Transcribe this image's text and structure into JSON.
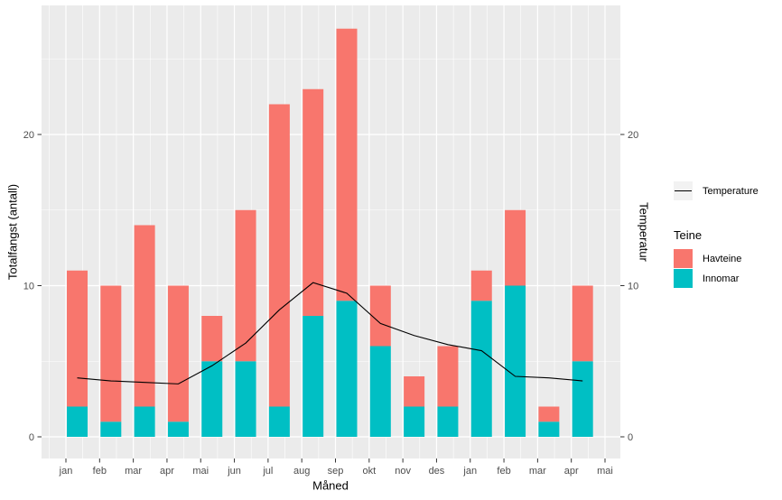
{
  "chart_data": {
    "type": "bar",
    "subtype": "stacked-bars-with-line-overlay",
    "title": "",
    "xlabel": "Måned",
    "ylabel_left": "Totalfangst (antall)",
    "ylabel_right": "Temperatur",
    "categories": [
      "jan",
      "feb",
      "mar",
      "apr",
      "mai",
      "jun",
      "jul",
      "aug",
      "sep",
      "okt",
      "nov",
      "des",
      "jan",
      "feb",
      "mar",
      "apr",
      "mai"
    ],
    "series": [
      {
        "name": "Innomar",
        "type": "bar-bottom",
        "color": "#00BFC4",
        "values": [
          2,
          1,
          2,
          1,
          5,
          5,
          2,
          8,
          9,
          6,
          2,
          2,
          9,
          10,
          1,
          5,
          null
        ]
      },
      {
        "name": "Havteine",
        "type": "bar-top",
        "color": "#F8766D",
        "values": [
          9,
          9,
          12,
          9,
          3,
          10,
          20,
          15,
          18,
          4,
          2,
          4,
          2,
          5,
          1,
          5,
          null
        ]
      },
      {
        "name": "Temperature",
        "type": "line",
        "color": "#000000",
        "values": [
          3.9,
          3.7,
          3.6,
          3.5,
          4.7,
          6.2,
          8.4,
          10.2,
          9.5,
          7.5,
          6.7,
          6.1,
          5.7,
          4.0,
          3.9,
          3.7,
          null
        ]
      }
    ],
    "stack_totals": [
      11,
      10,
      14,
      10,
      8,
      15,
      22,
      23,
      27,
      10,
      4,
      6,
      11,
      15,
      2,
      10,
      null
    ],
    "yticks": [
      0,
      10,
      20
    ],
    "ylim": [
      -1.4,
      28.5
    ],
    "grid": "major-and-minor-white-on-gray",
    "legend_position": "right",
    "legend": {
      "line_label": "Temperature",
      "fill_title": "Teine",
      "fill_items": [
        {
          "label": "Havteine",
          "color": "#F8766D"
        },
        {
          "label": "Innomar",
          "color": "#00BFC4"
        }
      ]
    },
    "style": {
      "panel_bg": "#EBEBEB",
      "grid_color": "#FFFFFF",
      "tick_text_color": "#4D4D4D",
      "tick_mark_color": "#333333",
      "legend_key_bg": "#F2F2F2"
    }
  }
}
